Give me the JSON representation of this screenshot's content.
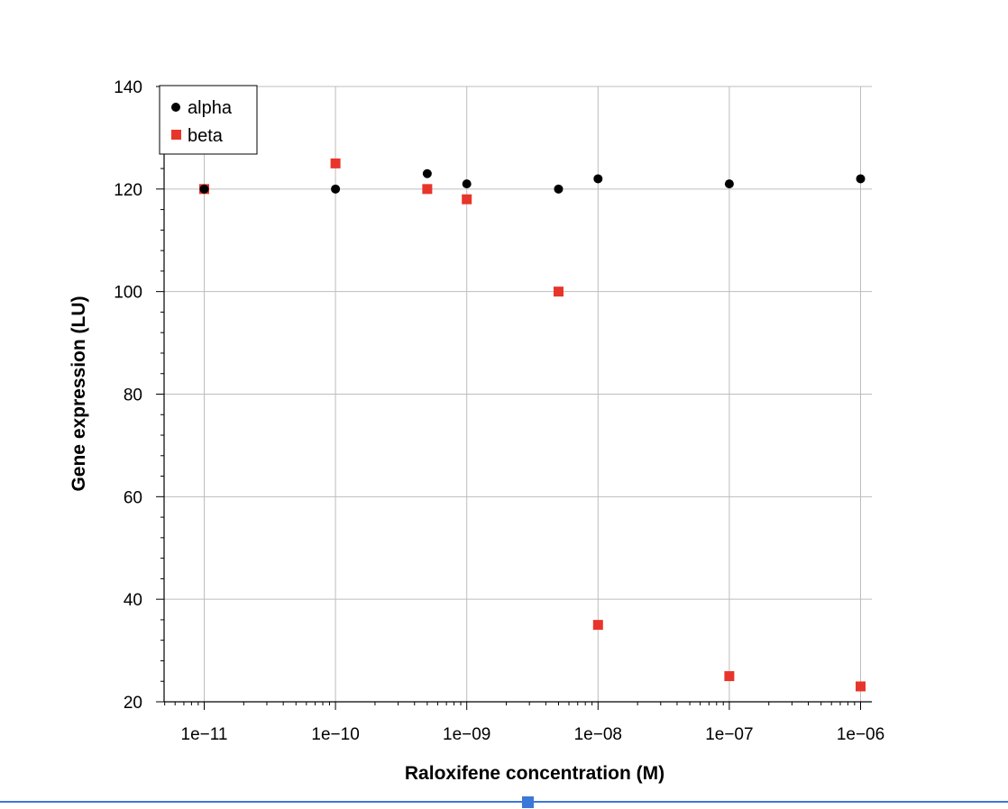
{
  "chart_data": {
    "type": "scatter",
    "title": "",
    "xlabel": "Raloxifene concentration (M)",
    "ylabel": "Gene expression (LU)",
    "xscale": "log",
    "xlim": [
      5e-12,
      1.1e-06
    ],
    "ylim": [
      20,
      140
    ],
    "xticks": [
      1e-11,
      1e-10,
      1e-09,
      1e-08,
      1e-07,
      1e-06
    ],
    "xtick_labels": [
      "1e−11",
      "1e−10",
      "1e−09",
      "1e−08",
      "1e−07",
      "1e−06"
    ],
    "yticks": [
      20,
      40,
      60,
      80,
      100,
      120,
      140
    ],
    "ytick_labels": [
      "20",
      "40",
      "60",
      "80",
      "100",
      "120",
      "140"
    ],
    "grid": true,
    "legend_position": "top-left",
    "series": [
      {
        "name": "alpha",
        "marker": "circle",
        "color": "#000000",
        "points": [
          {
            "x": 1e-11,
            "y": 120
          },
          {
            "x": 1e-10,
            "y": 120
          },
          {
            "x": 5e-10,
            "y": 123
          },
          {
            "x": 1e-09,
            "y": 121
          },
          {
            "x": 5e-09,
            "y": 120
          },
          {
            "x": 1e-08,
            "y": 122
          },
          {
            "x": 1e-07,
            "y": 121
          },
          {
            "x": 1e-06,
            "y": 122
          }
        ]
      },
      {
        "name": "beta",
        "marker": "square",
        "color": "#e8352b",
        "points": [
          {
            "x": 1e-11,
            "y": 120
          },
          {
            "x": 1e-10,
            "y": 125
          },
          {
            "x": 5e-10,
            "y": 120
          },
          {
            "x": 1e-09,
            "y": 118
          },
          {
            "x": 5e-09,
            "y": 100
          },
          {
            "x": 1e-08,
            "y": 35
          },
          {
            "x": 1e-07,
            "y": 25
          },
          {
            "x": 1e-06,
            "y": 23
          }
        ]
      }
    ]
  },
  "colors": {
    "grid": "#bdbdbd",
    "axis": "#000000",
    "divider": "#3b78d8"
  }
}
